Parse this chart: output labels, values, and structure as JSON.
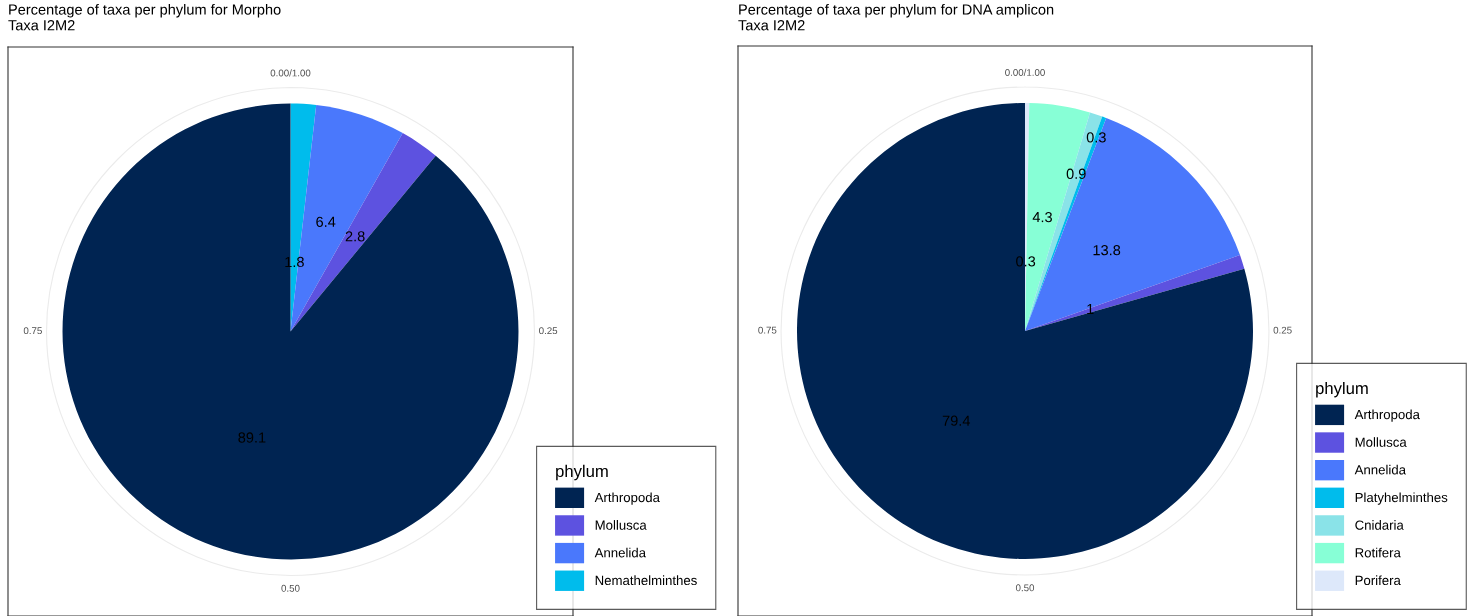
{
  "chart_data": [
    {
      "type": "pie",
      "title": "Percentage of taxa per phylum for Morpho",
      "subtitle": "Taxa I2M2",
      "legend_title": "phylum",
      "legend": "bottom right",
      "grid": true,
      "data_labels": true,
      "categories": [
        "Arthropoda",
        "Mollusca",
        "Annelida",
        "Nemathelminthes"
      ],
      "values": [
        89.1,
        2.8,
        6.4,
        1.8
      ],
      "colors": [
        "#002452",
        "#5d52e0",
        "#4a78fc",
        "#00bcec"
      ],
      "annotations": [
        "0.00/1.00",
        "0.25",
        "0.50",
        "0.75"
      ]
    },
    {
      "type": "pie",
      "title": "Percentage of taxa per phylum for DNA amplicon",
      "subtitle": "Taxa I2M2",
      "legend_title": "phylum",
      "legend": "bottom right",
      "grid": true,
      "data_labels": true,
      "categories": [
        "Arthropoda",
        "Mollusca",
        "Annelida",
        "Platyhelminthes",
        "Cnidaria",
        "Rotifera",
        "Porifera"
      ],
      "values": [
        79.4,
        1,
        13.8,
        0.3,
        0.9,
        4.3,
        0.3
      ],
      "colors": [
        "#002452",
        "#5d52e0",
        "#4a78fc",
        "#00bcec",
        "#8ae3e8",
        "#87ffd6",
        "#dde8fa"
      ],
      "annotations": [
        "0.00/1.00",
        "0.25",
        "0.50",
        "0.75"
      ]
    }
  ]
}
